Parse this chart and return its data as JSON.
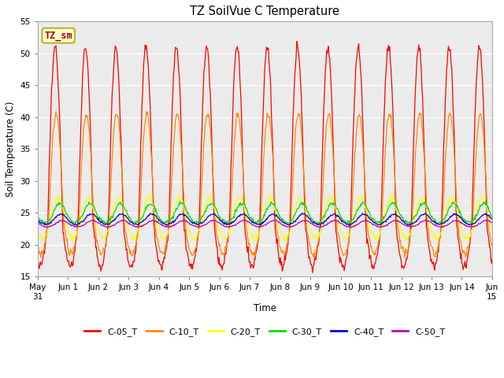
{
  "title": "TZ SoilVue C Temperature",
  "xlabel": "Time",
  "ylabel": "Soil Temperature (C)",
  "ylim": [
    15,
    55
  ],
  "yticks": [
    15,
    20,
    25,
    30,
    35,
    40,
    45,
    50,
    55
  ],
  "colors": {
    "C-05_T": "#ff0000",
    "C-10_T": "#ff8800",
    "C-20_T": "#ffff00",
    "C-30_T": "#00dd00",
    "C-40_T": "#0000dd",
    "C-50_T": "#bb00bb"
  },
  "legend_label": "TZ_sm",
  "legend_box_color": "#ffffcc",
  "legend_box_border": "#aaaa00",
  "legend_text_color": "#aa0000",
  "fig_bg_color": "#ffffff",
  "plot_bg_color": "#ebebeb",
  "n_days": 15,
  "points_per_day": 48
}
